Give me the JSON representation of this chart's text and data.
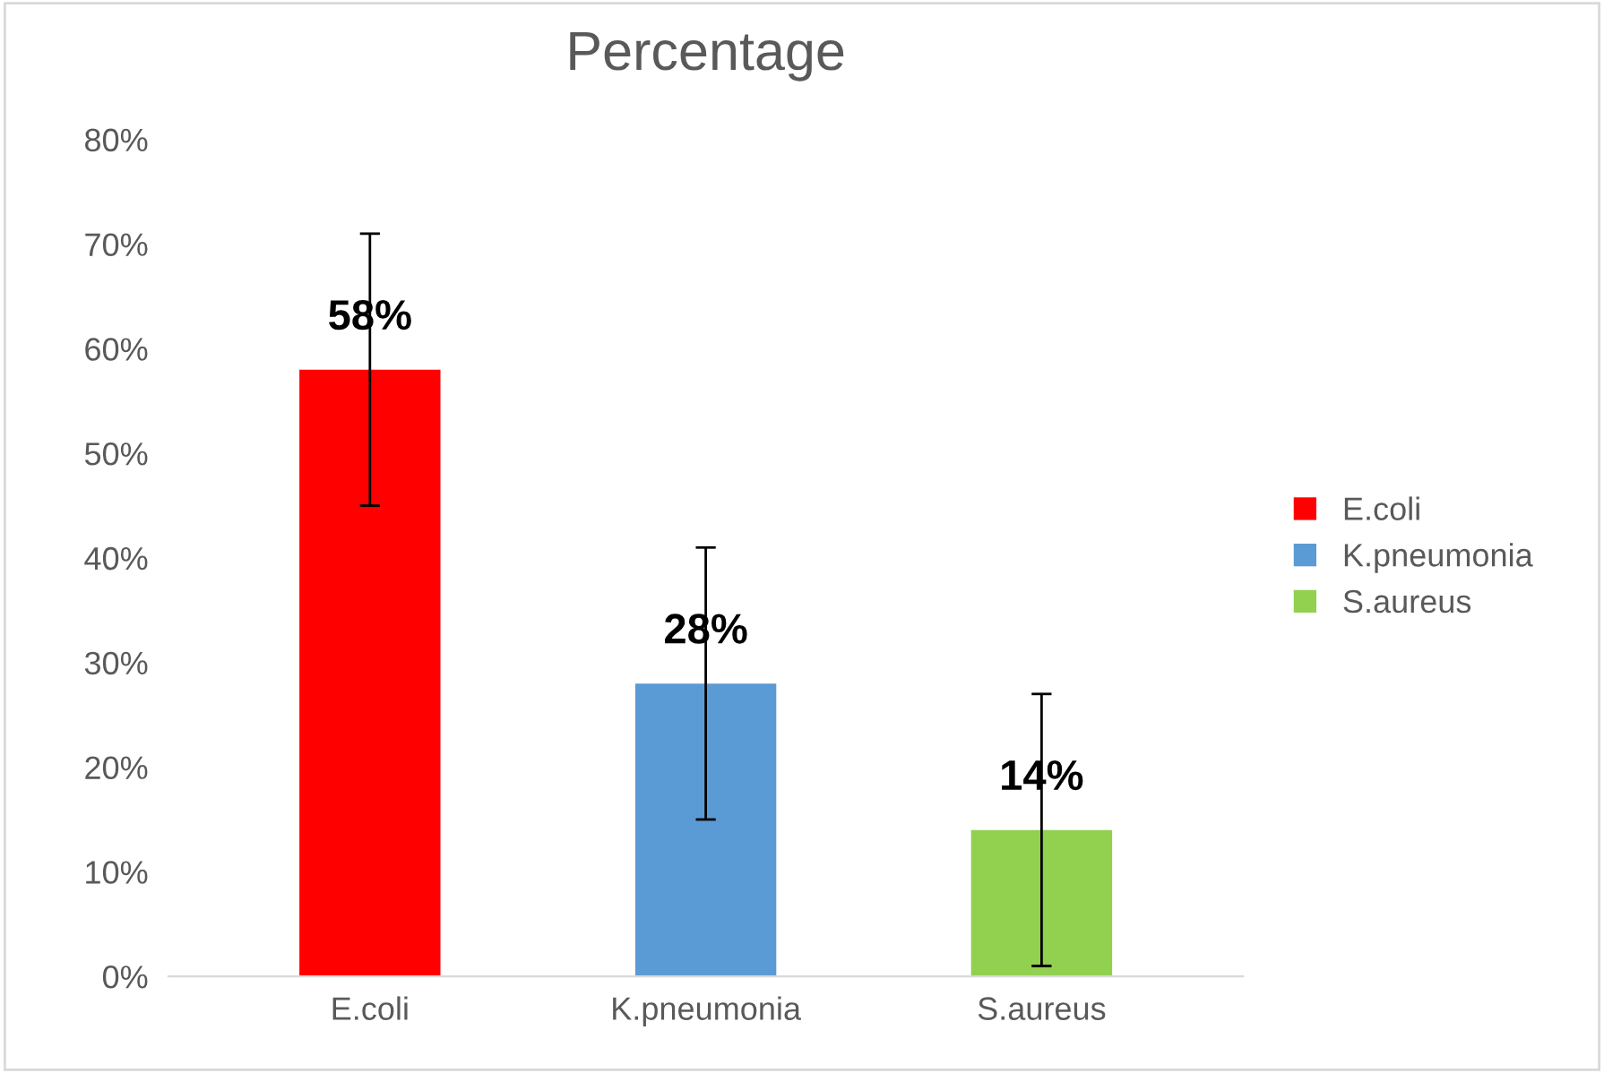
{
  "chart_data": {
    "type": "bar",
    "title": "Percentage",
    "categories": [
      "E.coli",
      "K.pneumonia",
      "S.aureus"
    ],
    "series": [
      {
        "name": "E.coli",
        "color": "#ff0000",
        "values": [
          58,
          null,
          null
        ],
        "errors": [
          13,
          null,
          null
        ],
        "value_labels": [
          "58%",
          null,
          null
        ]
      },
      {
        "name": "K.pneumonia",
        "color": "#5b9bd5",
        "values": [
          null,
          28,
          null
        ],
        "errors": [
          null,
          13,
          null
        ],
        "value_labels": [
          null,
          "28%",
          null
        ]
      },
      {
        "name": "S.aureus",
        "color": "#92d050",
        "values": [
          null,
          null,
          14
        ],
        "errors": [
          null,
          null,
          13
        ],
        "value_labels": [
          null,
          null,
          "14%"
        ]
      }
    ],
    "ylim": [
      0,
      80
    ],
    "yticks": [
      {
        "value": 0,
        "label": "0%"
      },
      {
        "value": 10,
        "label": "10%"
      },
      {
        "value": 20,
        "label": "20%"
      },
      {
        "value": 30,
        "label": "30%"
      },
      {
        "value": 40,
        "label": "40%"
      },
      {
        "value": 50,
        "label": "50%"
      },
      {
        "value": 60,
        "label": "60%"
      },
      {
        "value": 70,
        "label": "70%"
      },
      {
        "value": 80,
        "label": "80%"
      }
    ],
    "legend": "right"
  }
}
